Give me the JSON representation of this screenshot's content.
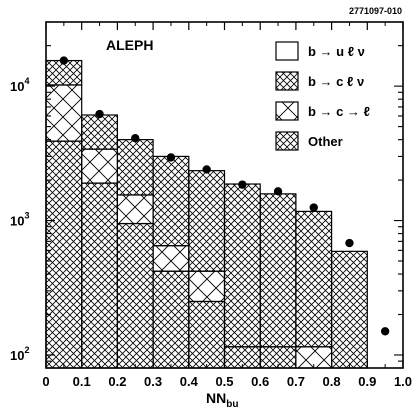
{
  "chart_data": {
    "type": "histogram",
    "reference_id": "2771097-010",
    "experiment_label": "ALEPH",
    "xlabel_main": "NN",
    "xlabel_sub": "bu",
    "ylabel": "",
    "x_scale": "linear",
    "y_scale": "log",
    "xlim": [
      0,
      1.0
    ],
    "ylim": [
      80,
      30000
    ],
    "x_ticks": [
      "0",
      "0.1",
      "0.2",
      "0.3",
      "0.4",
      "0.5",
      "0.6",
      "0.7",
      "0.8",
      "0.9",
      "1.0"
    ],
    "y_ticks": [
      {
        "value": 100,
        "base": "10",
        "exp": "2"
      },
      {
        "value": 1000,
        "base": "10",
        "exp": "3"
      },
      {
        "value": 10000,
        "base": "10",
        "exp": "4"
      }
    ],
    "bin_edges": [
      0,
      0.1,
      0.2,
      0.3,
      0.4,
      0.5,
      0.6,
      0.7,
      0.8,
      0.9,
      1.0
    ],
    "stack": [
      {
        "name": "Other",
        "pattern": "cross-dense",
        "values": [
          3900,
          1900,
          950,
          420,
          250,
          115,
          115,
          65,
          55,
          55
        ]
      },
      {
        "name": "b → c → ℓ",
        "pattern": "cross-sparse",
        "values": [
          6300,
          1500,
          600,
          230,
          170,
          0,
          0,
          50,
          0,
          0
        ]
      },
      {
        "name": "b → c ℓ ν",
        "pattern": "cross-dense",
        "values": [
          5300,
          2700,
          2450,
          2350,
          1930,
          1755,
          1465,
          1055,
          535,
          17
        ]
      },
      {
        "name": "b → u ℓ ν",
        "pattern": "open",
        "values": [
          0,
          0,
          0,
          0,
          0,
          0,
          0,
          0,
          0,
          3
        ]
      }
    ],
    "data_points": {
      "x": [
        0.05,
        0.15,
        0.25,
        0.35,
        0.45,
        0.55,
        0.65,
        0.75,
        0.85,
        0.95
      ],
      "y": [
        15500,
        6200,
        4100,
        2950,
        2400,
        1850,
        1650,
        1250,
        680,
        150
      ]
    },
    "legend": {
      "placement": "top-right",
      "entries": [
        {
          "label": "b → u ℓ ν",
          "pattern": "open"
        },
        {
          "label": "b → c ℓ ν",
          "pattern": "cross-dense"
        },
        {
          "label": "b → c → ℓ",
          "pattern": "cross-sparse"
        },
        {
          "label": "Other",
          "pattern": "cross-dense"
        }
      ]
    }
  }
}
